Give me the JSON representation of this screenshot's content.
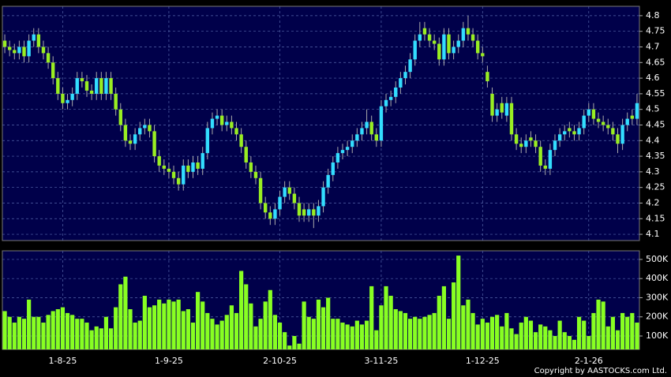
{
  "chart_data": [
    {
      "type": "candlestick",
      "categories": [
        null,
        null,
        null,
        null,
        null,
        null,
        null,
        null,
        null,
        null,
        null,
        null,
        "1-8-25",
        null,
        null,
        null,
        null,
        null,
        null,
        null,
        null,
        null,
        null,
        null,
        null,
        null,
        null,
        null,
        null,
        null,
        null,
        null,
        null,
        null,
        "1-9-25",
        null,
        null,
        null,
        null,
        null,
        null,
        null,
        null,
        null,
        null,
        null,
        null,
        null,
        null,
        null,
        null,
        null,
        null,
        null,
        null,
        null,
        null,
        "2-10-25",
        null,
        null,
        null,
        null,
        null,
        null,
        null,
        null,
        null,
        null,
        null,
        null,
        null,
        null,
        null,
        null,
        null,
        null,
        null,
        null,
        "3-11-25",
        null,
        null,
        null,
        null,
        null,
        null,
        null,
        null,
        null,
        null,
        null,
        null,
        null,
        null,
        null,
        null,
        null,
        null,
        null,
        null,
        "1-12-25",
        null,
        null,
        null,
        null,
        null,
        null,
        null,
        null,
        null,
        null,
        null,
        null,
        null,
        null,
        null,
        null,
        null,
        null,
        null,
        null,
        null,
        "2-1-26",
        null,
        null,
        null,
        null,
        null,
        null,
        null,
        null,
        null,
        null
      ],
      "open": [
        4.72,
        4.7,
        4.69,
        4.68,
        4.7,
        4.67,
        4.72,
        4.74,
        4.7,
        4.68,
        4.65,
        4.6,
        4.55,
        4.52,
        4.53,
        4.55,
        4.6,
        4.59,
        4.56,
        4.55,
        4.6,
        4.55,
        4.6,
        4.55,
        4.5,
        4.45,
        4.4,
        4.39,
        4.42,
        4.44,
        4.45,
        4.43,
        4.35,
        4.32,
        4.31,
        4.3,
        4.28,
        4.26,
        4.32,
        4.3,
        4.33,
        4.31,
        4.36,
        4.44,
        4.47,
        4.48,
        4.45,
        4.46,
        4.44,
        4.42,
        4.38,
        4.33,
        4.3,
        4.28,
        4.2,
        4.17,
        4.15,
        4.18,
        4.22,
        4.25,
        4.23,
        4.2,
        4.18,
        4.16,
        4.18,
        4.16,
        4.19,
        4.25,
        4.29,
        4.33,
        4.36,
        4.37,
        4.38,
        4.4,
        4.42,
        4.44,
        4.46,
        4.42,
        4.4,
        4.51,
        4.53,
        4.54,
        4.57,
        4.6,
        4.62,
        4.66,
        4.72,
        4.76,
        4.74,
        4.72,
        4.71,
        4.66,
        4.74,
        4.68,
        4.7,
        4.72,
        4.76,
        4.74,
        4.72,
        4.68,
        4.62,
        4.55,
        4.48,
        4.52,
        4.48,
        4.52,
        4.42,
        4.39,
        4.38,
        4.41,
        4.4,
        4.38,
        4.32,
        4.31,
        4.37,
        4.4,
        4.42,
        4.44,
        4.43,
        4.42,
        4.44,
        4.48,
        4.5,
        4.47,
        4.46,
        4.45,
        4.44,
        4.42,
        4.39,
        4.45,
        4.48,
        4.47
      ],
      "high": [
        4.74,
        4.72,
        4.71,
        4.72,
        4.72,
        4.74,
        4.76,
        4.76,
        4.72,
        4.7,
        4.67,
        4.62,
        4.57,
        4.55,
        4.57,
        4.62,
        4.62,
        4.61,
        4.58,
        4.62,
        4.62,
        4.62,
        4.62,
        4.57,
        4.52,
        4.47,
        4.42,
        4.44,
        4.46,
        4.47,
        4.47,
        4.45,
        4.37,
        4.34,
        4.33,
        4.32,
        4.3,
        4.34,
        4.34,
        4.35,
        4.35,
        4.38,
        4.46,
        4.49,
        4.5,
        4.5,
        4.48,
        4.48,
        4.46,
        4.44,
        4.4,
        4.35,
        4.32,
        4.3,
        4.22,
        4.19,
        4.2,
        4.24,
        4.27,
        4.27,
        4.25,
        4.22,
        4.2,
        4.2,
        4.2,
        4.21,
        4.27,
        4.31,
        4.35,
        4.38,
        4.39,
        4.4,
        4.42,
        4.44,
        4.46,
        4.5,
        4.48,
        4.44,
        4.53,
        4.55,
        4.56,
        4.59,
        4.62,
        4.64,
        4.68,
        4.74,
        4.78,
        4.78,
        4.76,
        4.74,
        4.73,
        4.76,
        4.76,
        4.72,
        4.74,
        4.78,
        4.8,
        4.76,
        4.74,
        4.7,
        4.64,
        4.57,
        4.52,
        4.54,
        4.54,
        4.54,
        4.44,
        4.41,
        4.42,
        4.43,
        4.42,
        4.4,
        4.34,
        4.39,
        4.42,
        4.44,
        4.45,
        4.46,
        4.45,
        4.46,
        4.5,
        4.52,
        4.52,
        4.49,
        4.48,
        4.47,
        4.46,
        4.44,
        4.47,
        4.49,
        4.5,
        4.55
      ],
      "low": [
        4.68,
        4.67,
        4.66,
        4.66,
        4.65,
        4.65,
        4.7,
        4.68,
        4.66,
        4.63,
        4.58,
        4.53,
        4.5,
        4.5,
        4.51,
        4.53,
        4.57,
        4.54,
        4.53,
        4.53,
        4.53,
        4.53,
        4.53,
        4.48,
        4.43,
        4.38,
        4.37,
        4.37,
        4.4,
        4.42,
        4.41,
        4.33,
        4.3,
        4.29,
        4.28,
        4.26,
        4.24,
        4.24,
        4.28,
        4.28,
        4.29,
        4.29,
        4.34,
        4.42,
        4.45,
        4.43,
        4.43,
        4.42,
        4.4,
        4.36,
        4.31,
        4.28,
        4.26,
        4.18,
        4.15,
        4.13,
        4.13,
        4.16,
        4.2,
        4.21,
        4.18,
        4.14,
        4.14,
        4.14,
        4.12,
        4.14,
        4.17,
        4.23,
        4.27,
        4.31,
        4.34,
        4.35,
        4.36,
        4.38,
        4.4,
        4.42,
        4.4,
        4.38,
        4.38,
        4.49,
        4.51,
        4.52,
        4.55,
        4.58,
        4.6,
        4.64,
        4.7,
        4.72,
        4.7,
        4.69,
        4.64,
        4.64,
        4.66,
        4.66,
        4.68,
        4.7,
        4.72,
        4.7,
        4.66,
        4.65,
        4.57,
        4.46,
        4.46,
        4.47,
        4.46,
        4.4,
        4.37,
        4.36,
        4.36,
        4.38,
        4.36,
        4.3,
        4.29,
        4.29,
        4.35,
        4.38,
        4.4,
        4.41,
        4.4,
        4.4,
        4.42,
        4.46,
        4.45,
        4.44,
        4.43,
        4.42,
        4.4,
        4.36,
        4.37,
        4.43,
        4.45,
        4.45
      ],
      "close": [
        4.7,
        4.69,
        4.68,
        4.7,
        4.67,
        4.72,
        4.74,
        4.7,
        4.68,
        4.65,
        4.6,
        4.55,
        4.52,
        4.53,
        4.55,
        4.6,
        4.59,
        4.56,
        4.55,
        4.6,
        4.55,
        4.6,
        4.55,
        4.5,
        4.45,
        4.4,
        4.39,
        4.42,
        4.44,
        4.45,
        4.43,
        4.35,
        4.32,
        4.31,
        4.3,
        4.28,
        4.26,
        4.32,
        4.3,
        4.33,
        4.31,
        4.36,
        4.44,
        4.47,
        4.48,
        4.45,
        4.46,
        4.44,
        4.42,
        4.38,
        4.33,
        4.3,
        4.28,
        4.2,
        4.17,
        4.15,
        4.18,
        4.22,
        4.25,
        4.23,
        4.2,
        4.16,
        4.16,
        4.18,
        4.16,
        4.19,
        4.25,
        4.29,
        4.33,
        4.36,
        4.37,
        4.38,
        4.4,
        4.42,
        4.44,
        4.46,
        4.42,
        4.4,
        4.51,
        4.53,
        4.54,
        4.57,
        4.6,
        4.62,
        4.66,
        4.72,
        4.74,
        4.74,
        4.72,
        4.71,
        4.66,
        4.74,
        4.68,
        4.7,
        4.72,
        4.76,
        4.74,
        4.72,
        4.68,
        4.67,
        4.59,
        4.48,
        4.5,
        4.49,
        4.52,
        4.42,
        4.39,
        4.38,
        4.4,
        4.4,
        4.38,
        4.32,
        4.31,
        4.37,
        4.4,
        4.42,
        4.43,
        4.43,
        4.42,
        4.44,
        4.48,
        4.5,
        4.47,
        4.46,
        4.45,
        4.44,
        4.42,
        4.39,
        4.45,
        4.47,
        4.47,
        4.52
      ],
      "up_color": "#33ddff",
      "down_color": "#99ee22",
      "ylim": [
        4.08,
        4.83
      ],
      "yticks": [
        4.1,
        4.15,
        4.2,
        4.25,
        4.3,
        4.35,
        4.4,
        4.45,
        4.5,
        4.55,
        4.6,
        4.65,
        4.7,
        4.75,
        4.8
      ],
      "grid": true
    },
    {
      "type": "bar",
      "values": [
        230000,
        200000,
        170000,
        200000,
        190000,
        290000,
        200000,
        200000,
        170000,
        210000,
        230000,
        240000,
        250000,
        220000,
        210000,
        190000,
        190000,
        170000,
        130000,
        150000,
        140000,
        200000,
        140000,
        250000,
        370000,
        410000,
        240000,
        170000,
        180000,
        310000,
        250000,
        260000,
        290000,
        270000,
        290000,
        280000,
        290000,
        230000,
        240000,
        170000,
        330000,
        280000,
        220000,
        190000,
        160000,
        180000,
        210000,
        260000,
        220000,
        440000,
        370000,
        270000,
        150000,
        190000,
        280000,
        340000,
        210000,
        170000,
        120000,
        50000,
        100000,
        60000,
        280000,
        200000,
        190000,
        290000,
        250000,
        300000,
        190000,
        190000,
        170000,
        160000,
        150000,
        180000,
        160000,
        180000,
        360000,
        130000,
        260000,
        360000,
        310000,
        240000,
        230000,
        220000,
        190000,
        200000,
        190000,
        200000,
        210000,
        220000,
        310000,
        360000,
        190000,
        380000,
        520000,
        260000,
        290000,
        220000,
        160000,
        190000,
        170000,
        200000,
        210000,
        150000,
        220000,
        140000,
        110000,
        170000,
        200000,
        180000,
        120000,
        160000,
        150000,
        130000,
        100000,
        180000,
        120000,
        100000,
        80000,
        200000,
        180000,
        100000,
        220000,
        290000,
        280000,
        150000,
        200000,
        130000,
        220000,
        200000,
        220000,
        170000
      ],
      "color": "#88ff22",
      "ylim": [
        30000,
        545000
      ],
      "yticks": [
        {
          "value": 100000,
          "label": "100K"
        },
        {
          "value": 200000,
          "label": "200K"
        },
        {
          "value": 300000,
          "label": "300K"
        },
        {
          "value": 400000,
          "label": "400K"
        },
        {
          "value": 500000,
          "label": "500K"
        }
      ],
      "grid": true
    }
  ],
  "copyright": "Copyright by AASTOCKS.com Ltd."
}
